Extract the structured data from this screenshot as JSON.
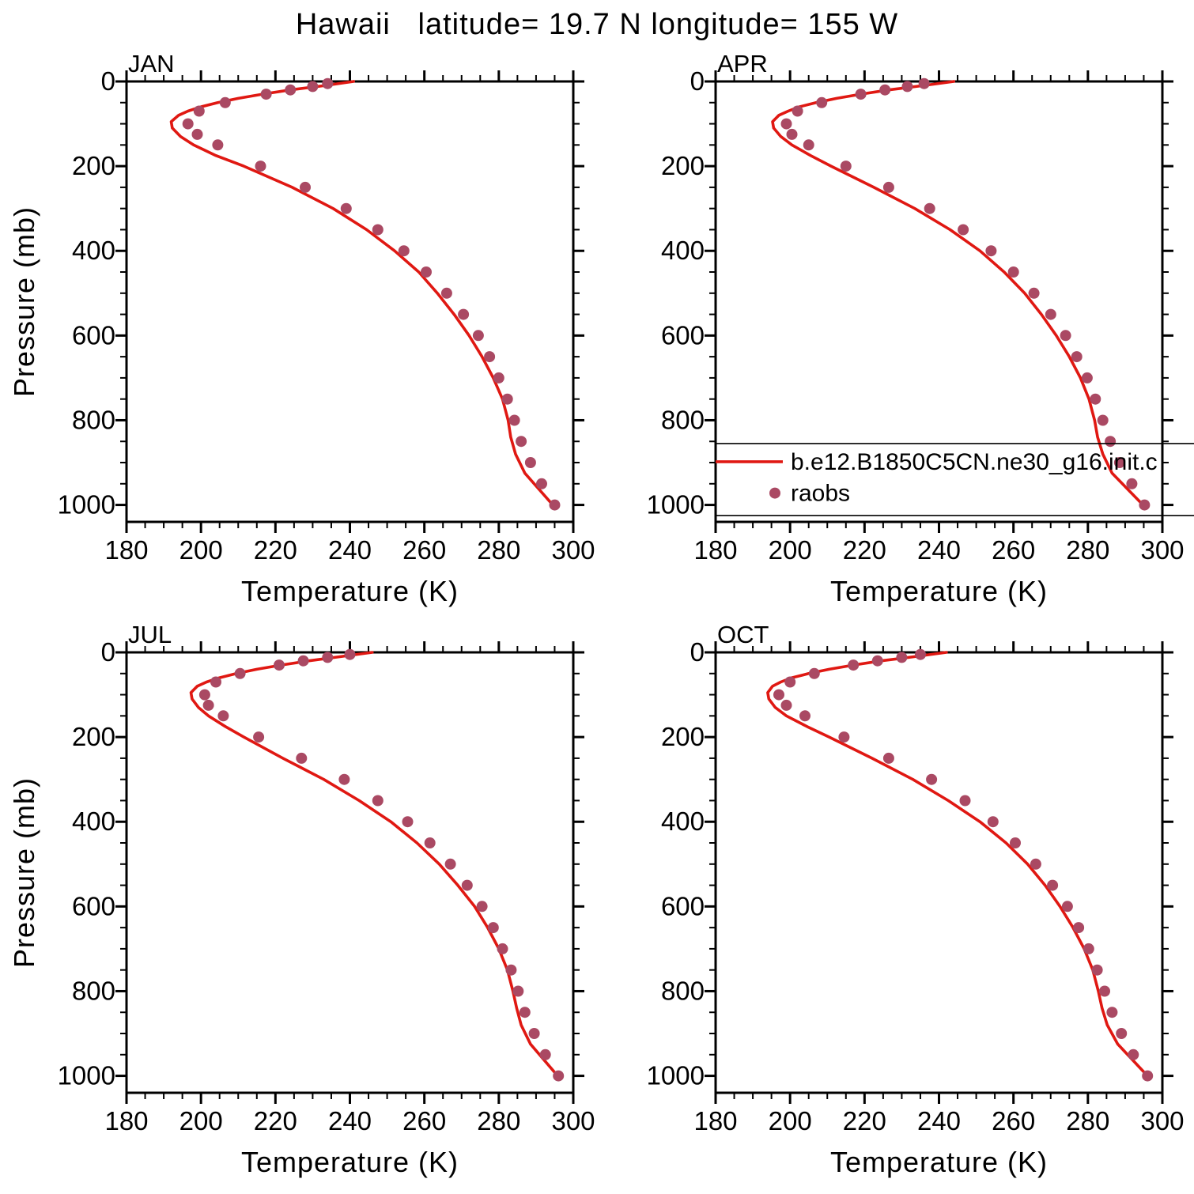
{
  "chart_data": {
    "type": "line",
    "title": "Hawaii   latitude= 19.7 N longitude= 155 W",
    "xlabel": "Temperature (K)",
    "ylabel": "Pressure (mb)",
    "xlim": [
      180,
      300
    ],
    "ylim": [
      0,
      1040
    ],
    "x_major_ticks": [
      180,
      200,
      220,
      240,
      260,
      280,
      300
    ],
    "x_minor_step": 5,
    "y_major_ticks": [
      0,
      200,
      400,
      600,
      800,
      1000
    ],
    "y_minor_step": 50,
    "grid": false,
    "colors": {
      "model_line": "#e01812",
      "raobs_dot": "#aa4963",
      "axis": "#000000"
    },
    "legend": {
      "panel": "APR",
      "entries": [
        {
          "type": "line",
          "label": "b.e12.B1850C5CN.ne30_g16.init.c"
        },
        {
          "type": "dot",
          "label": "raobs"
        }
      ]
    },
    "panels": [
      {
        "month": "JAN",
        "model": {
          "pressure": [
            0,
            10,
            20,
            30,
            40,
            50,
            60,
            70,
            80,
            95,
            110,
            130,
            150,
            175,
            200,
            250,
            300,
            350,
            400,
            450,
            500,
            550,
            600,
            650,
            700,
            750,
            800,
            840,
            880,
            925,
            1000
          ],
          "temp": [
            241,
            233,
            224,
            216.5,
            210,
            204.5,
            200,
            196.5,
            194,
            192,
            192.3,
            194.5,
            198,
            204,
            211.5,
            224.5,
            235.5,
            244.5,
            252,
            258.5,
            263.5,
            268,
            272,
            275.5,
            278.5,
            281,
            282.5,
            283.2,
            284.5,
            287,
            294.5
          ]
        },
        "raobs": {
          "pressure": [
            5,
            12,
            20,
            30,
            50,
            70,
            100,
            125,
            150,
            200,
            250,
            300,
            350,
            400,
            450,
            500,
            550,
            600,
            650,
            700,
            750,
            800,
            850,
            900,
            950,
            1000
          ],
          "temp": [
            234,
            230,
            224,
            217.5,
            206.5,
            199.5,
            196.5,
            199,
            204.5,
            216,
            228,
            239,
            247.5,
            254.5,
            260.5,
            266,
            270.5,
            274.5,
            277.5,
            280,
            282.3,
            284.2,
            286,
            288.5,
            291.5,
            295
          ]
        }
      },
      {
        "month": "APR",
        "model": {
          "pressure": [
            0,
            10,
            20,
            30,
            40,
            50,
            60,
            70,
            80,
            95,
            110,
            130,
            150,
            175,
            200,
            250,
            300,
            350,
            400,
            450,
            500,
            550,
            600,
            650,
            700,
            750,
            800,
            840,
            880,
            925,
            1000
          ],
          "temp": [
            244,
            235.5,
            226.5,
            219,
            212.5,
            207,
            202.5,
            199.5,
            197,
            195.3,
            195.6,
            197.5,
            200.5,
            205.5,
            211,
            222.5,
            233.5,
            243,
            251,
            257.5,
            263,
            267.5,
            271.5,
            275,
            278,
            280.3,
            281.8,
            282.6,
            284,
            286.5,
            294.8
          ]
        },
        "raobs": {
          "pressure": [
            5,
            12,
            20,
            30,
            50,
            70,
            100,
            125,
            150,
            200,
            250,
            300,
            350,
            400,
            450,
            500,
            550,
            600,
            650,
            700,
            750,
            800,
            850,
            900,
            950,
            1000
          ],
          "temp": [
            236,
            231.5,
            225.5,
            219,
            208.5,
            202,
            199,
            200.5,
            205,
            215,
            226.5,
            237.5,
            246.5,
            254,
            260,
            265.5,
            270,
            274,
            277,
            279.8,
            282,
            284,
            286,
            288.5,
            291.8,
            295.2
          ]
        }
      },
      {
        "month": "JUL",
        "model": {
          "pressure": [
            0,
            10,
            20,
            30,
            40,
            50,
            60,
            70,
            80,
            95,
            110,
            130,
            150,
            175,
            200,
            250,
            300,
            350,
            400,
            450,
            500,
            550,
            600,
            650,
            700,
            750,
            800,
            840,
            880,
            925,
            1000
          ],
          "temp": [
            246,
            237.5,
            229,
            221.5,
            215,
            209.5,
            205,
            201.5,
            199,
            197.3,
            197.6,
            199.3,
            202,
            206.5,
            211.5,
            222,
            233,
            242.5,
            251,
            258,
            264,
            269,
            273.5,
            277,
            280,
            282.3,
            283.8,
            284.8,
            286,
            288.5,
            295.8
          ]
        },
        "raobs": {
          "pressure": [
            5,
            12,
            20,
            30,
            50,
            70,
            100,
            125,
            150,
            200,
            250,
            300,
            350,
            400,
            450,
            500,
            550,
            600,
            650,
            700,
            750,
            800,
            850,
            900,
            950,
            1000
          ],
          "temp": [
            240,
            234,
            227.5,
            221,
            210.5,
            204,
            201,
            202,
            206,
            215.5,
            227,
            238.5,
            247.5,
            255.5,
            261.5,
            267,
            271.5,
            275.5,
            278.5,
            281,
            283.3,
            285.2,
            287,
            289.5,
            292.5,
            296
          ]
        }
      },
      {
        "month": "OCT",
        "model": {
          "pressure": [
            0,
            10,
            20,
            30,
            40,
            50,
            60,
            70,
            80,
            95,
            110,
            130,
            150,
            175,
            200,
            250,
            300,
            350,
            400,
            450,
            500,
            550,
            600,
            650,
            700,
            750,
            800,
            840,
            880,
            925,
            1000
          ],
          "temp": [
            242,
            233.5,
            224.5,
            217,
            210.5,
            205,
            200.5,
            197.5,
            195.3,
            194,
            194.3,
            196,
            199,
            204.5,
            210.5,
            222,
            233,
            242.5,
            251,
            258,
            263.8,
            268.5,
            272.5,
            276,
            279,
            281.3,
            282.8,
            283.8,
            285.2,
            288,
            296
          ]
        },
        "raobs": {
          "pressure": [
            5,
            12,
            20,
            30,
            50,
            70,
            100,
            125,
            150,
            200,
            250,
            300,
            350,
            400,
            450,
            500,
            550,
            600,
            650,
            700,
            750,
            800,
            850,
            900,
            950,
            1000
          ],
          "temp": [
            235,
            230,
            223.5,
            217,
            206.5,
            200,
            197,
            199,
            204,
            214.5,
            226.5,
            238,
            247,
            254.5,
            260.5,
            266,
            270.5,
            274.5,
            277.5,
            280.2,
            282.5,
            284.5,
            286.5,
            289,
            292.2,
            296
          ]
        }
      }
    ]
  }
}
